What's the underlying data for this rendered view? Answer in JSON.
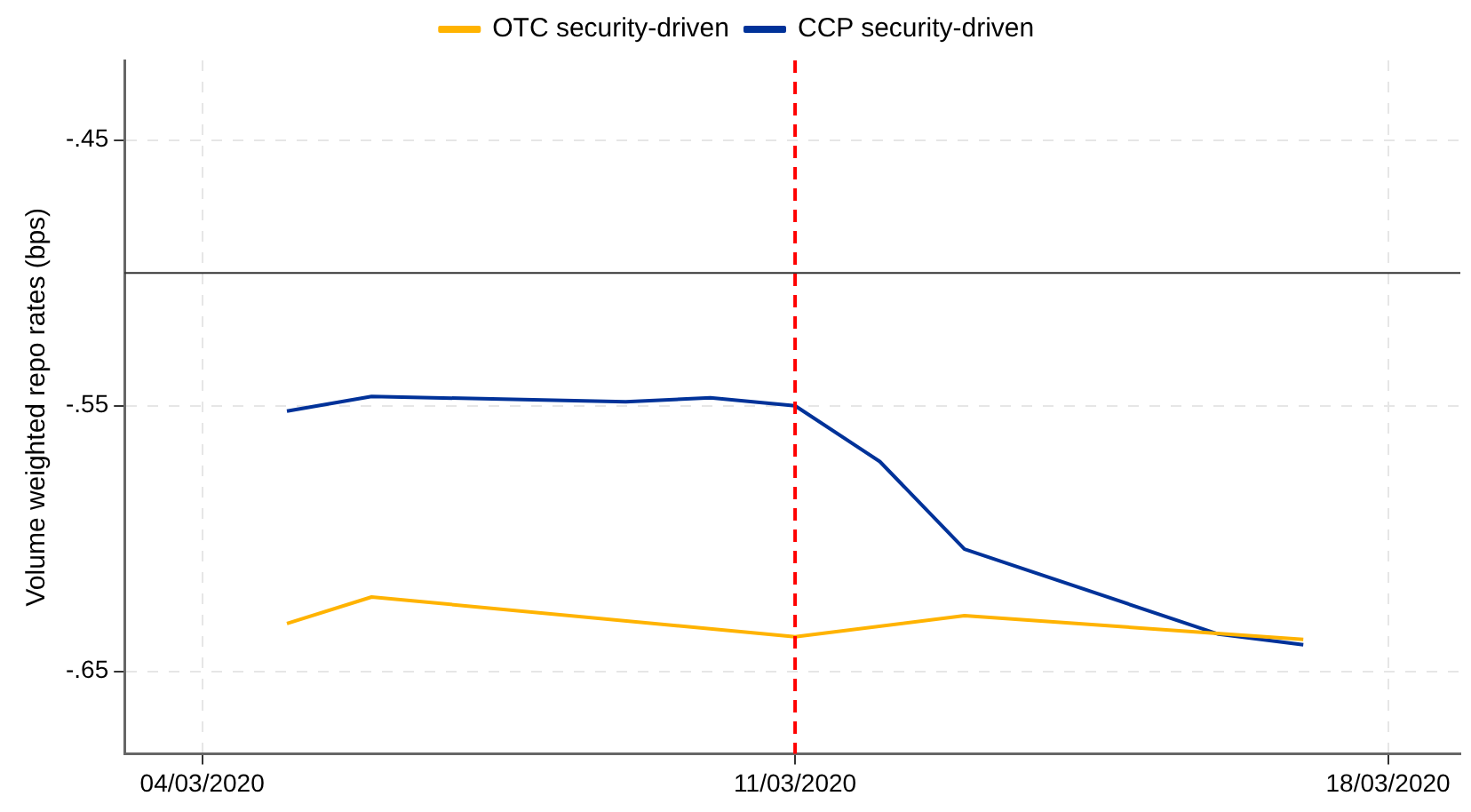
{
  "chart_data": {
    "type": "line",
    "ylabel": "Volume weighted repo rates (bps)",
    "xlim": [
      "2020-03-03T02:00",
      "2020-03-18T20:30"
    ],
    "xticks": [
      {
        "value": "2020-03-04",
        "label": "04/03/2020"
      },
      {
        "value": "2020-03-11",
        "label": "11/03/2020"
      },
      {
        "value": "2020-03-18",
        "label": "18/03/2020"
      }
    ],
    "ylim": [
      -0.681,
      -0.42
    ],
    "yticks": [
      {
        "value": -0.45,
        "label": "-.45"
      },
      {
        "value": -0.55,
        "label": "-.55"
      },
      {
        "value": -0.65,
        "label": "-.65"
      }
    ],
    "series": [
      {
        "name": "OTC security-driven",
        "color": "#ffb300",
        "x": [
          "2020-03-05",
          "2020-03-06",
          "2020-03-11",
          "2020-03-13",
          "2020-03-17"
        ],
        "values": [
          -0.632,
          -0.622,
          -0.637,
          -0.629,
          -0.638
        ]
      },
      {
        "name": "CCP security-driven",
        "color": "#003299",
        "x": [
          "2020-03-05",
          "2020-03-06",
          "2020-03-09",
          "2020-03-10",
          "2020-03-11",
          "2020-03-12",
          "2020-03-13",
          "2020-03-16",
          "2020-03-17"
        ],
        "values": [
          -0.552,
          -0.5465,
          -0.5485,
          -0.547,
          -0.55,
          -0.571,
          -0.604,
          -0.636,
          -0.64
        ]
      }
    ],
    "ref_lines": [
      {
        "axis": "y",
        "value": -0.5,
        "color": "#333333",
        "line_style": "solid"
      },
      {
        "axis": "x",
        "value": "2020-03-11",
        "color": "#ff0000",
        "line_style": "dashed"
      }
    ],
    "grid": true,
    "legend": "top",
    "line_style": "solid",
    "marker": "none"
  }
}
